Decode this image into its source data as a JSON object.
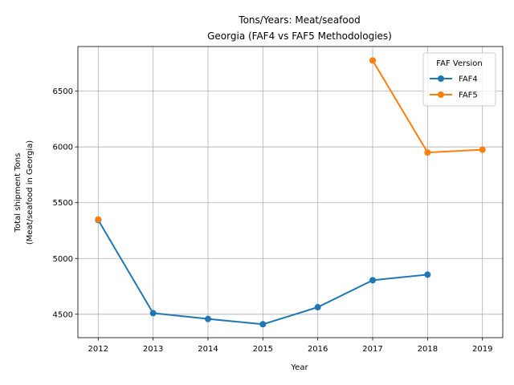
{
  "chart_data": {
    "type": "line",
    "title_line1": "Tons/Years: Meat/seafood",
    "title_line2": "Georgia (FAF4 vs FAF5 Methodologies)",
    "xlabel": "Year",
    "ylabel_line1": "Total shipment Tons",
    "ylabel_line2": "(Meat/seafood in Georgia)",
    "x_ticks": [
      "2012",
      "2013",
      "2014",
      "2015",
      "2016",
      "2017",
      "2018",
      "2019"
    ],
    "y_ticks": [
      4500,
      5000,
      5500,
      6000,
      6500
    ],
    "xlim": [
      2011.63,
      2019.37
    ],
    "ylim": [
      4290,
      6900
    ],
    "grid": true,
    "legend_title": "FAF Version",
    "legend_position": "top-right",
    "series": [
      {
        "name": "FAF4",
        "color": "#1f77b4",
        "x": [
          2012,
          2013,
          2014,
          2015,
          2016,
          2017,
          2018
        ],
        "y": [
          5345,
          4510,
          4458,
          4410,
          4563,
          4805,
          4855
        ]
      },
      {
        "name": "FAF5",
        "color": "#ff7f0e",
        "x": [
          2012,
          2017,
          2018,
          2019
        ],
        "y": [
          5350,
          6775,
          5950,
          5975
        ],
        "segments": [
          [
            2017,
            2018,
            2019
          ]
        ]
      }
    ]
  }
}
